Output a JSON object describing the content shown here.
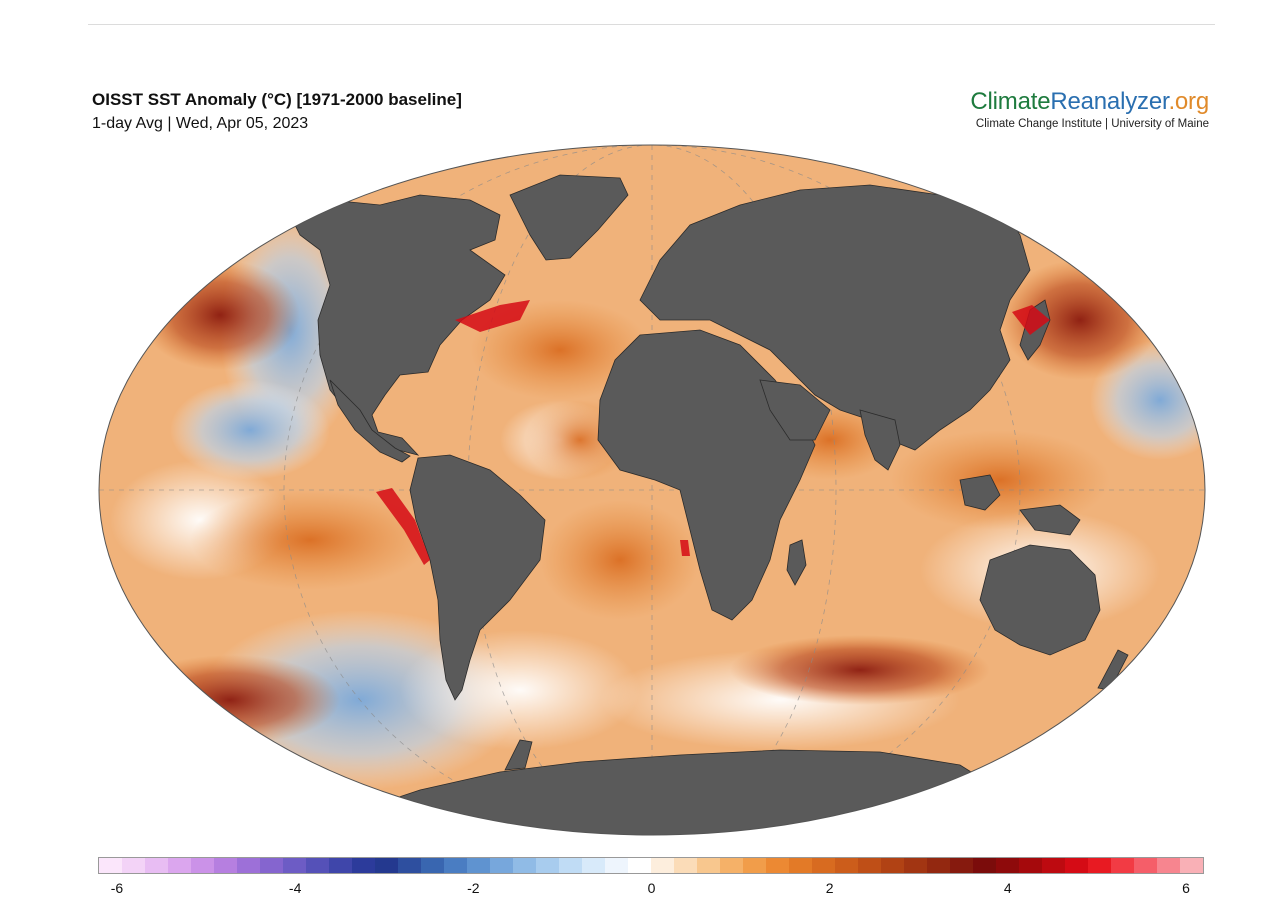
{
  "header": {
    "title": "OISST SST Anomaly (°C) [1971-2000 baseline]",
    "subtitle": "1-day Avg | Wed, Apr 05, 2023"
  },
  "brand": {
    "name_part1": "Climate",
    "name_part2": "Reanalyzer",
    "name_part3": ".org",
    "tagline": "Climate Change Institute | University of Maine",
    "colors": {
      "climate": "#1e7b3e",
      "reanalyzer": "#2a6fb0",
      "tld": "#e08a2a"
    }
  },
  "map": {
    "projection": "Robinson-like elliptical world map",
    "land_color": "#5a5a5a",
    "ocean_base_color": "#f0b27a"
  },
  "colorbar": {
    "min": -6,
    "max": 6,
    "tick_labels": [
      "-6",
      "-4",
      "-2",
      "0",
      "2",
      "4",
      "6"
    ],
    "colors": [
      "#fbe6fb",
      "#f3d3f7",
      "#e8bdf3",
      "#dba6ee",
      "#cb92e8",
      "#b67fe0",
      "#9d70d8",
      "#8565cf",
      "#6d5cc5",
      "#5551b8",
      "#3f46aa",
      "#2c3b9b",
      "#24398f",
      "#2e4f9f",
      "#3966b0",
      "#4a7dc2",
      "#5f93d0",
      "#77a7dc",
      "#90bbe6",
      "#a8ccee",
      "#c0dcf5",
      "#d8eafa",
      "#eef5fd",
      "#ffffff",
      "#fdeedd",
      "#fbdcb8",
      "#f8c78e",
      "#f5b168",
      "#f19d4a",
      "#ec8933",
      "#e37a27",
      "#d86b20",
      "#cc5d1b",
      "#bf4f17",
      "#b14214",
      "#a23512",
      "#932810",
      "#861a0e",
      "#7b0c0b",
      "#8e0a0b",
      "#a5090c",
      "#bd0a10",
      "#d50b15",
      "#e81a22",
      "#f23b44",
      "#f55e69",
      "#f7858f",
      "#f9b0b6"
    ]
  }
}
